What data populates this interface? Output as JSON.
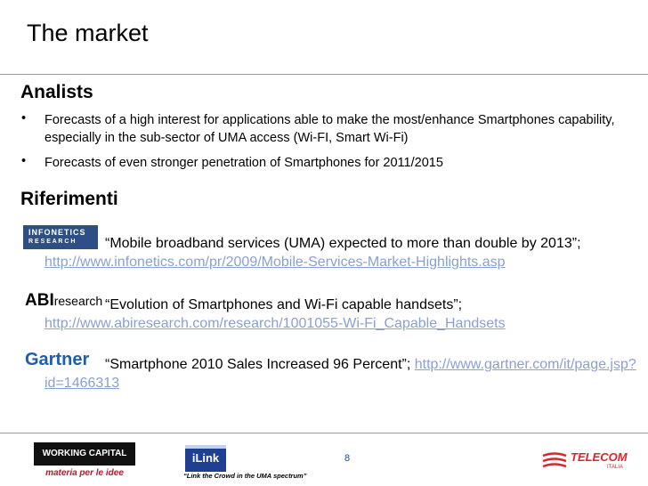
{
  "title": "The market",
  "sections": {
    "analists": {
      "heading": "Analists",
      "bullets": [
        "Forecasts of a high interest for applications able to make the most/enhance Smartphones capability, especially in the sub-sector of UMA  access (Wi-FI, Smart Wi-Fi)",
        "Forecasts of even stronger penetration of Smartphones for 2011/2015"
      ]
    },
    "riferimenti": {
      "heading": "Riferimenti",
      "refs": [
        {
          "logo_line1": "INFONETICS",
          "logo_line2": "R E S E A R C H",
          "quote": "“Mobile broadband services (UMA) expected to more than double by 2013”;",
          "link": "http://www.infonetics.com/pr/2009/Mobile-Services-Market-Highlights.asp"
        },
        {
          "logo_a": "ABI",
          "logo_b": "research",
          "quote": "“Evolution of Smartphones and Wi-Fi capable handsets”;",
          "link": "http://www.abiresearch.com/research/1001055-Wi-Fi_Capable_Handsets"
        },
        {
          "logo": "Gartner",
          "quote": "“Smartphone 2010 Sales Increased 96 Percent”;",
          "link": "http://www.gartner.com/it/page.jsp?id=1466313"
        }
      ]
    }
  },
  "footer": {
    "wc_top": "WORKING CAPITAL",
    "wc_bottom": "materia per le idee",
    "ilink": "iLink",
    "tagline": "“Link the Crowd in the UMA spectrum”",
    "page_number": "8",
    "telecom": "TELECOM",
    "telecom_sub": "ITALIA"
  },
  "colors": {
    "link": "#8aa0d2",
    "telecom_red": "#d6262c",
    "page_number": "#1a4aa6",
    "infonetics_blue": "#2d4f86",
    "gartner_blue": "#1d5fa8"
  }
}
